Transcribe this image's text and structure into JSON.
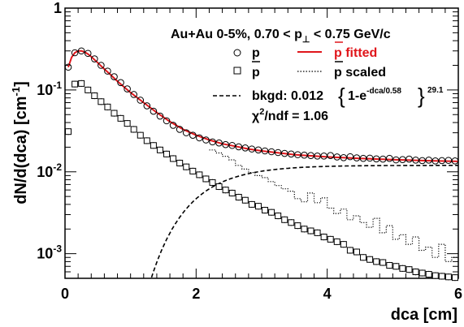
{
  "chart_data": {
    "type": "scatter",
    "title": "Au+Au 0-5%, 0.70 < p⊥ < 0.75 GeV/c",
    "title_parts": {
      "prefix": "Au+Au 0-5%, 0.70 < p",
      "subscript": "⊥",
      "suffix": " < 0.75 GeV/c"
    },
    "xlabel": "dca [cm]",
    "ylabel": "dN/d(dca) [cm⁻¹]",
    "ylabel_parts": {
      "base": "dN/d(dca) [cm",
      "sup": "-1",
      "end": "]"
    },
    "xlim": [
      0,
      6
    ],
    "ylim": [
      0.0005,
      1
    ],
    "yscale": "log",
    "x_ticks": [
      "0",
      "2",
      "4",
      "6"
    ],
    "y_ticks": [
      {
        "value": 1,
        "base": "1",
        "exp": ""
      },
      {
        "value": 0.1,
        "base": "10",
        "exp": "-1"
      },
      {
        "value": 0.01,
        "base": "10",
        "exp": "-2"
      },
      {
        "value": 0.001,
        "base": "10",
        "exp": "-3"
      }
    ],
    "legend": {
      "p": "p",
      "pbar": "p",
      "p_fitted": "p fitted",
      "pbar_scaled": "p scaled",
      "bkgd": {
        "prefix": "bkgd: 0.012",
        "inner_base": "1-e",
        "inner_exp": "-dca/0.58",
        "outer_exp": "29.1"
      },
      "chi2": {
        "base": "χ",
        "sup": "2",
        "rest": "/ndf = 1.06"
      }
    },
    "colors": {
      "fit": "#e0161b",
      "data": "#000000"
    },
    "series": [
      {
        "name": "p",
        "marker": "circle",
        "x": [
          0.05,
          0.15,
          0.25,
          0.35,
          0.45,
          0.55,
          0.65,
          0.75,
          0.85,
          0.95,
          1.05,
          1.15,
          1.25,
          1.35,
          1.45,
          1.55,
          1.65,
          1.75,
          1.85,
          1.95,
          2.05,
          2.15,
          2.25,
          2.35,
          2.45,
          2.55,
          2.65,
          2.75,
          2.85,
          2.95,
          3.05,
          3.15,
          3.25,
          3.35,
          3.45,
          3.55,
          3.65,
          3.75,
          3.85,
          3.95,
          4.05,
          4.15,
          4.25,
          4.35,
          4.45,
          4.55,
          4.65,
          4.75,
          4.85,
          4.95,
          5.05,
          5.15,
          5.25,
          5.35,
          5.45,
          5.55,
          5.65,
          5.75,
          5.85,
          5.95
        ],
        "y": [
          0.19,
          0.285,
          0.3,
          0.28,
          0.24,
          0.2,
          0.17,
          0.145,
          0.123,
          0.103,
          0.088,
          0.075,
          0.064,
          0.055,
          0.048,
          0.042,
          0.037,
          0.033,
          0.03,
          0.028,
          0.026,
          0.0245,
          0.0232,
          0.0225,
          0.0215,
          0.021,
          0.0202,
          0.0196,
          0.019,
          0.0185,
          0.018,
          0.0176,
          0.0172,
          0.0168,
          0.0165,
          0.0162,
          0.016,
          0.0158,
          0.0156,
          0.0156,
          0.0158,
          0.0152,
          0.0149,
          0.0153,
          0.0148,
          0.0146,
          0.0147,
          0.0144,
          0.0143,
          0.0146,
          0.014,
          0.0141,
          0.0143,
          0.0139,
          0.0137,
          0.0139,
          0.0136,
          0.0137,
          0.0138,
          0.0136
        ]
      },
      {
        "name": "pbar",
        "marker": "square",
        "x": [
          0.05,
          0.15,
          0.25,
          0.35,
          0.45,
          0.55,
          0.65,
          0.75,
          0.85,
          0.95,
          1.05,
          1.15,
          1.25,
          1.35,
          1.45,
          1.55,
          1.65,
          1.75,
          1.85,
          1.95,
          2.05,
          2.15,
          2.25,
          2.35,
          2.45,
          2.55,
          2.65,
          2.75,
          2.85,
          2.95,
          3.05,
          3.15,
          3.25,
          3.35,
          3.45,
          3.55,
          3.65,
          3.75,
          3.85,
          3.95,
          4.05,
          4.15,
          4.25,
          4.35,
          4.45,
          4.55,
          4.65,
          4.75,
          4.85,
          4.95,
          5.05,
          5.15,
          5.25,
          5.35,
          5.45,
          5.55,
          5.65,
          5.75,
          5.85,
          5.95
        ],
        "y": [
          0.031,
          0.118,
          0.12,
          0.1,
          0.085,
          0.072,
          0.062,
          0.052,
          0.045,
          0.039,
          0.033,
          0.028,
          0.024,
          0.021,
          0.0185,
          0.0165,
          0.0145,
          0.0128,
          0.0115,
          0.0102,
          0.0092,
          0.0082,
          0.0074,
          0.0066,
          0.006,
          0.0055,
          0.0049,
          0.0045,
          0.004,
          0.0038,
          0.0034,
          0.0032,
          0.0029,
          0.0026,
          0.0024,
          0.0022,
          0.002,
          0.0019,
          0.0018,
          0.0016,
          0.0015,
          0.0014,
          0.0013,
          0.0011,
          0.00105,
          0.0009,
          0.00085,
          0.0008,
          0.00078,
          0.00072,
          0.0007,
          0.00066,
          0.00064,
          0.0006,
          0.00058,
          0.00056,
          0.00054,
          0.00053,
          0.00052,
          0.00051
        ]
      },
      {
        "name": "p fitted",
        "style": "line",
        "x": [
          0.05,
          0.1,
          0.15,
          0.2,
          0.25,
          0.3,
          0.35,
          0.4,
          0.5,
          0.6,
          0.7,
          0.8,
          0.9,
          1.0,
          1.2,
          1.4,
          1.6,
          1.8,
          2.0,
          2.2,
          2.4,
          2.6,
          2.8,
          3.0,
          3.5,
          4.0,
          4.5,
          5.0,
          5.5,
          6.0
        ],
        "y": [
          0.19,
          0.25,
          0.285,
          0.3,
          0.3,
          0.29,
          0.275,
          0.255,
          0.215,
          0.18,
          0.152,
          0.128,
          0.109,
          0.093,
          0.07,
          0.053,
          0.041,
          0.033,
          0.028,
          0.0245,
          0.022,
          0.0205,
          0.019,
          0.018,
          0.0162,
          0.0152,
          0.0146,
          0.0141,
          0.0137,
          0.0134
        ]
      },
      {
        "name": "p scaled",
        "style": "dotted-step",
        "x": [
          2.2,
          2.3,
          2.4,
          2.5,
          2.6,
          2.7,
          2.8,
          2.9,
          3.0,
          3.1,
          3.2,
          3.3,
          3.4,
          3.5,
          3.6,
          3.7,
          3.8,
          3.9,
          4.0,
          4.1,
          4.2,
          4.3,
          4.4,
          4.5,
          4.6,
          4.7,
          4.8,
          4.9,
          5.0,
          5.1,
          5.2,
          5.3,
          5.4,
          5.5,
          5.6,
          5.7,
          5.8,
          5.9
        ],
        "y": [
          0.0185,
          0.017,
          0.0155,
          0.014,
          0.012,
          0.0108,
          0.0098,
          0.009,
          0.0085,
          0.0076,
          0.0068,
          0.0062,
          0.0058,
          0.0047,
          0.0043,
          0.0055,
          0.0042,
          0.0048,
          0.0036,
          0.0031,
          0.0035,
          0.0026,
          0.0029,
          0.0024,
          0.0021,
          0.0027,
          0.0018,
          0.0022,
          0.0015,
          0.0017,
          0.0013,
          0.0016,
          0.0011,
          0.0012,
          0.0009,
          0.0013,
          0.0008,
          0.0009
        ]
      },
      {
        "name": "bkgd",
        "style": "dashed",
        "function": "0.012*(1-exp(-dca/0.58))^29.1",
        "x_range": [
          1.2,
          6.0
        ]
      }
    ]
  }
}
